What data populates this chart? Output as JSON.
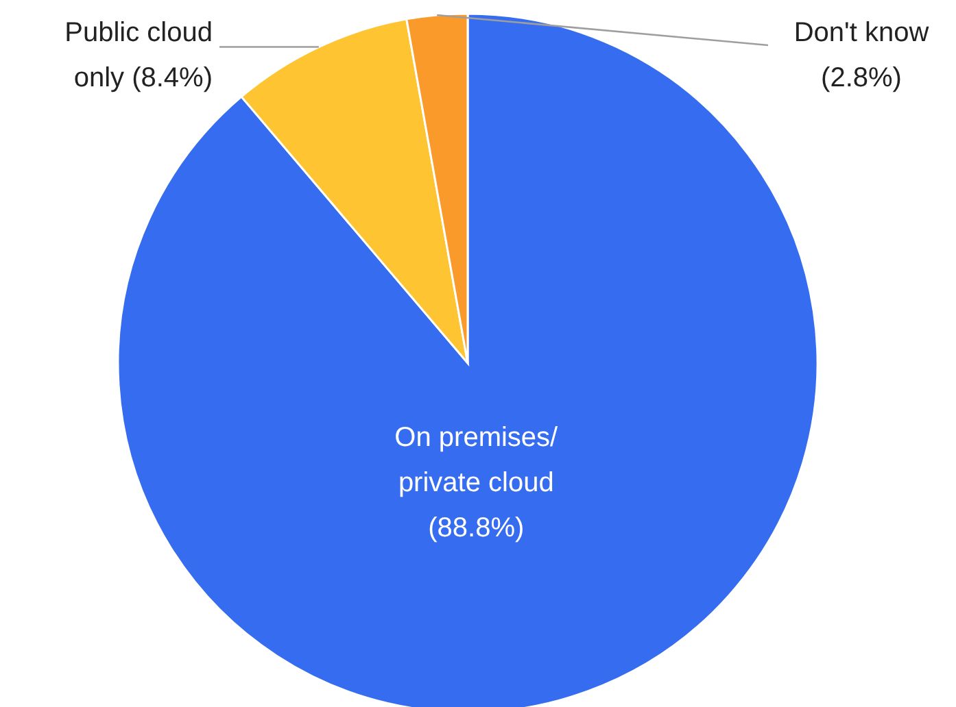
{
  "chart_data": {
    "type": "pie",
    "categories": [
      "On premises/ private cloud",
      "Public cloud only",
      "Don't know"
    ],
    "values": [
      88.8,
      8.4,
      2.8
    ],
    "value_labels": [
      "(88.8%)",
      "(8.4%)",
      "(2.8%)"
    ],
    "colors": [
      "#366cf0",
      "#fec432",
      "#f99a2b"
    ]
  }
}
